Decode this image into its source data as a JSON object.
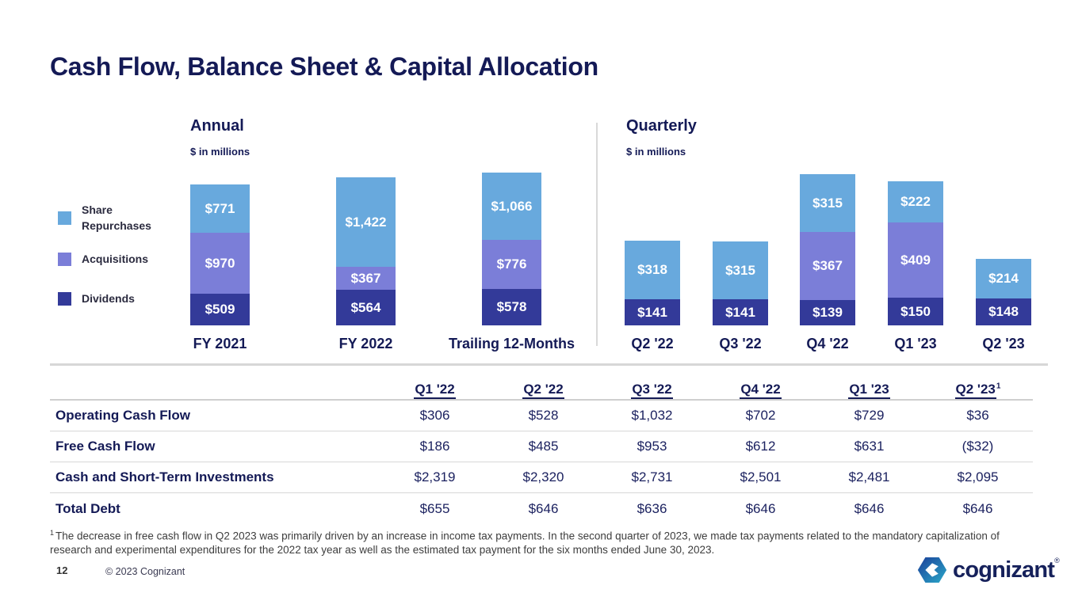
{
  "slide": {
    "title": "Cash Flow, Balance Sheet & Capital Allocation"
  },
  "legend": {
    "items": [
      {
        "label": "Share Repurchases",
        "color": "#68a9dd"
      },
      {
        "label": "Acquisitions",
        "color": "#7b7ed8"
      },
      {
        "label": "Dividends",
        "color": "#333a99"
      }
    ]
  },
  "chart_data": [
    {
      "type": "bar",
      "stacked": true,
      "title": "Annual",
      "subtitle": "$ in millions",
      "value_prefix": "$",
      "categories": [
        "FY 2021",
        "FY 2022",
        "Trailing 12-Months"
      ],
      "series": [
        {
          "name": "Dividends",
          "color": "#333a99",
          "values": [
            509,
            564,
            578
          ]
        },
        {
          "name": "Acquisitions",
          "color": "#7b7ed8",
          "values": [
            970,
            367,
            776
          ]
        },
        {
          "name": "Share Repurchases",
          "color": "#68a9dd",
          "values": [
            771,
            1422,
            1066
          ]
        }
      ],
      "legend_position": "left",
      "grid": false
    },
    {
      "type": "bar",
      "stacked": true,
      "title": "Quarterly",
      "subtitle": "$ in millions",
      "value_prefix": "$",
      "categories": [
        "Q2 '22",
        "Q3 '22",
        "Q4 '22",
        "Q1 '23",
        "Q2 '23"
      ],
      "series": [
        {
          "name": "Dividends",
          "color": "#333a99",
          "values": [
            141,
            141,
            139,
            150,
            148
          ]
        },
        {
          "name": "Acquisitions",
          "color": "#7b7ed8",
          "values": [
            0,
            0,
            367,
            409,
            0
          ]
        },
        {
          "name": "Share Repurchases",
          "color": "#68a9dd",
          "values": [
            318,
            315,
            315,
            222,
            214
          ]
        }
      ],
      "legend_position": "left",
      "grid": false
    }
  ],
  "table": {
    "columns": [
      {
        "label": "Q1 '22",
        "sup": ""
      },
      {
        "label": "Q2 '22",
        "sup": ""
      },
      {
        "label": "Q3 '22",
        "sup": ""
      },
      {
        "label": "Q4 '22",
        "sup": ""
      },
      {
        "label": "Q1 '23",
        "sup": ""
      },
      {
        "label": "Q2 '23",
        "sup": "1"
      }
    ],
    "rows": [
      {
        "label": "Operating Cash Flow",
        "values": [
          "$306",
          "$528",
          "$1,032",
          "$702",
          "$729",
          "$36"
        ]
      },
      {
        "label": "Free Cash Flow",
        "values": [
          "$186",
          "$485",
          "$953",
          "$612",
          "$631",
          "($32)"
        ]
      },
      {
        "label": "Cash and Short-Term Investments",
        "values": [
          "$2,319",
          "$2,320",
          "$2,731",
          "$2,501",
          "$2,481",
          "$2,095"
        ]
      },
      {
        "label": "Total Debt",
        "values": [
          "$655",
          "$646",
          "$636",
          "$646",
          "$646",
          "$646"
        ]
      }
    ]
  },
  "footnote": {
    "sup": "1",
    "text": "The decrease in free cash flow in Q2 2023 was primarily driven by an increase in income tax payments. In the second quarter of 2023, we made tax payments related to the mandatory capitalization of research and experimental expenditures for the 2022 tax year as well as the estimated tax payment for the six months ended June 30, 2023."
  },
  "footer": {
    "page_number": "12",
    "copyright": "© 2023 Cognizant",
    "logo_text": "cognizant",
    "logo_reg": "®"
  },
  "colors": {
    "share_repurchases": "#68a9dd",
    "acquisitions": "#7b7ed8",
    "dividends": "#333a99",
    "navy_text": "#141a56",
    "divider": "#d7d7d7",
    "logo_gradient_start": "#1b3f99",
    "logo_gradient_end": "#2aa9c9",
    "logo_navy": "#16215b"
  }
}
